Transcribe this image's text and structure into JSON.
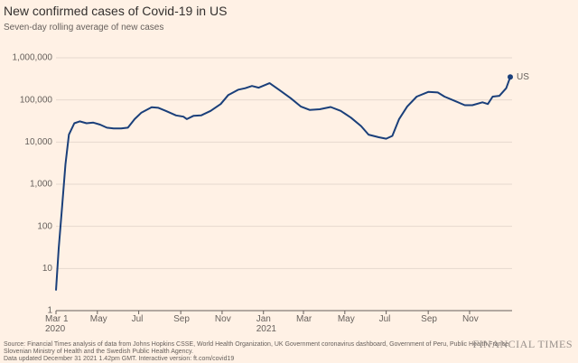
{
  "chart_data": {
    "type": "line",
    "log_scale": true,
    "grid": true,
    "title": "New confirmed cases of Covid-19 in US",
    "subtitle": "Seven-day rolling average of new cases",
    "x": [
      "2020-03-01",
      "2020-03-05",
      "2020-03-10",
      "2020-03-15",
      "2020-03-20",
      "2020-03-28",
      "2020-04-05",
      "2020-04-15",
      "2020-04-25",
      "2020-05-05",
      "2020-05-15",
      "2020-05-25",
      "2020-06-05",
      "2020-06-15",
      "2020-06-25",
      "2020-07-05",
      "2020-07-20",
      "2020-07-30",
      "2020-08-10",
      "2020-08-25",
      "2020-09-05",
      "2020-09-10",
      "2020-09-20",
      "2020-10-01",
      "2020-10-15",
      "2020-10-30",
      "2020-11-10",
      "2020-11-25",
      "2020-12-05",
      "2020-12-15",
      "2020-12-25",
      "2021-01-10",
      "2021-01-25",
      "2021-02-10",
      "2021-02-25",
      "2021-03-10",
      "2021-03-25",
      "2021-04-10",
      "2021-04-25",
      "2021-05-10",
      "2021-05-25",
      "2021-06-05",
      "2021-06-20",
      "2021-07-01",
      "2021-07-10",
      "2021-07-20",
      "2021-08-01",
      "2021-08-15",
      "2021-09-01",
      "2021-09-15",
      "2021-09-25",
      "2021-10-10",
      "2021-10-25",
      "2021-11-05",
      "2021-11-20",
      "2021-11-28",
      "2021-12-05",
      "2021-12-15",
      "2021-12-25",
      "2021-12-31"
    ],
    "series": [
      {
        "name": "US",
        "color": "#1a3f7a",
        "values": [
          3,
          30,
          300,
          3000,
          15000,
          28000,
          31000,
          28000,
          29000,
          26000,
          22000,
          21000,
          21000,
          22000,
          35000,
          50000,
          67000,
          65000,
          55000,
          43000,
          40000,
          35000,
          42000,
          43000,
          55000,
          80000,
          130000,
          175000,
          190000,
          215000,
          195000,
          250000,
          170000,
          110000,
          70000,
          58000,
          60000,
          68000,
          55000,
          38000,
          24000,
          15000,
          13000,
          12000,
          14000,
          35000,
          70000,
          120000,
          155000,
          150000,
          120000,
          95000,
          75000,
          75000,
          88000,
          80000,
          120000,
          125000,
          190000,
          350000
        ]
      }
    ],
    "xlim": [
      "2020-03-01",
      "2021-12-31"
    ],
    "xticks": [
      {
        "value": "2020-03-01",
        "label": "Mar 1\n2020"
      },
      {
        "value": "2020-05-01",
        "label": "May"
      },
      {
        "value": "2020-07-01",
        "label": "Jul"
      },
      {
        "value": "2020-09-01",
        "label": "Sep"
      },
      {
        "value": "2020-11-01",
        "label": "Nov"
      },
      {
        "value": "2021-01-01",
        "label": "Jan\n2021"
      },
      {
        "value": "2021-03-01",
        "label": "Mar"
      },
      {
        "value": "2021-05-01",
        "label": "May"
      },
      {
        "value": "2021-07-01",
        "label": "Jul"
      },
      {
        "value": "2021-09-01",
        "label": "Sep"
      },
      {
        "value": "2021-11-01",
        "label": "Nov"
      }
    ],
    "ylim": [
      1,
      1000000
    ],
    "yticks": [
      1,
      10,
      100,
      {
        "value": 1000,
        "label": "1,000"
      },
      {
        "value": 10000,
        "label": "10,000"
      },
      {
        "value": 100000,
        "label": "100,000"
      },
      {
        "value": 1000000,
        "label": "1,000,000"
      }
    ],
    "source": [
      "Source: Financial Times analysis of data from Johns Hopkins CSSE, World Health Organization, UK Government coronavirus dashboard, Government of Peru, Public Health France,",
      "Slovenian Ministry of Health and the Swedish Public Health Agency.",
      "Data updated December 31 2021 1.42pm GMT. Interactive version: ft.com/covid19"
    ],
    "brand": "FINANCIAL TIMES"
  }
}
